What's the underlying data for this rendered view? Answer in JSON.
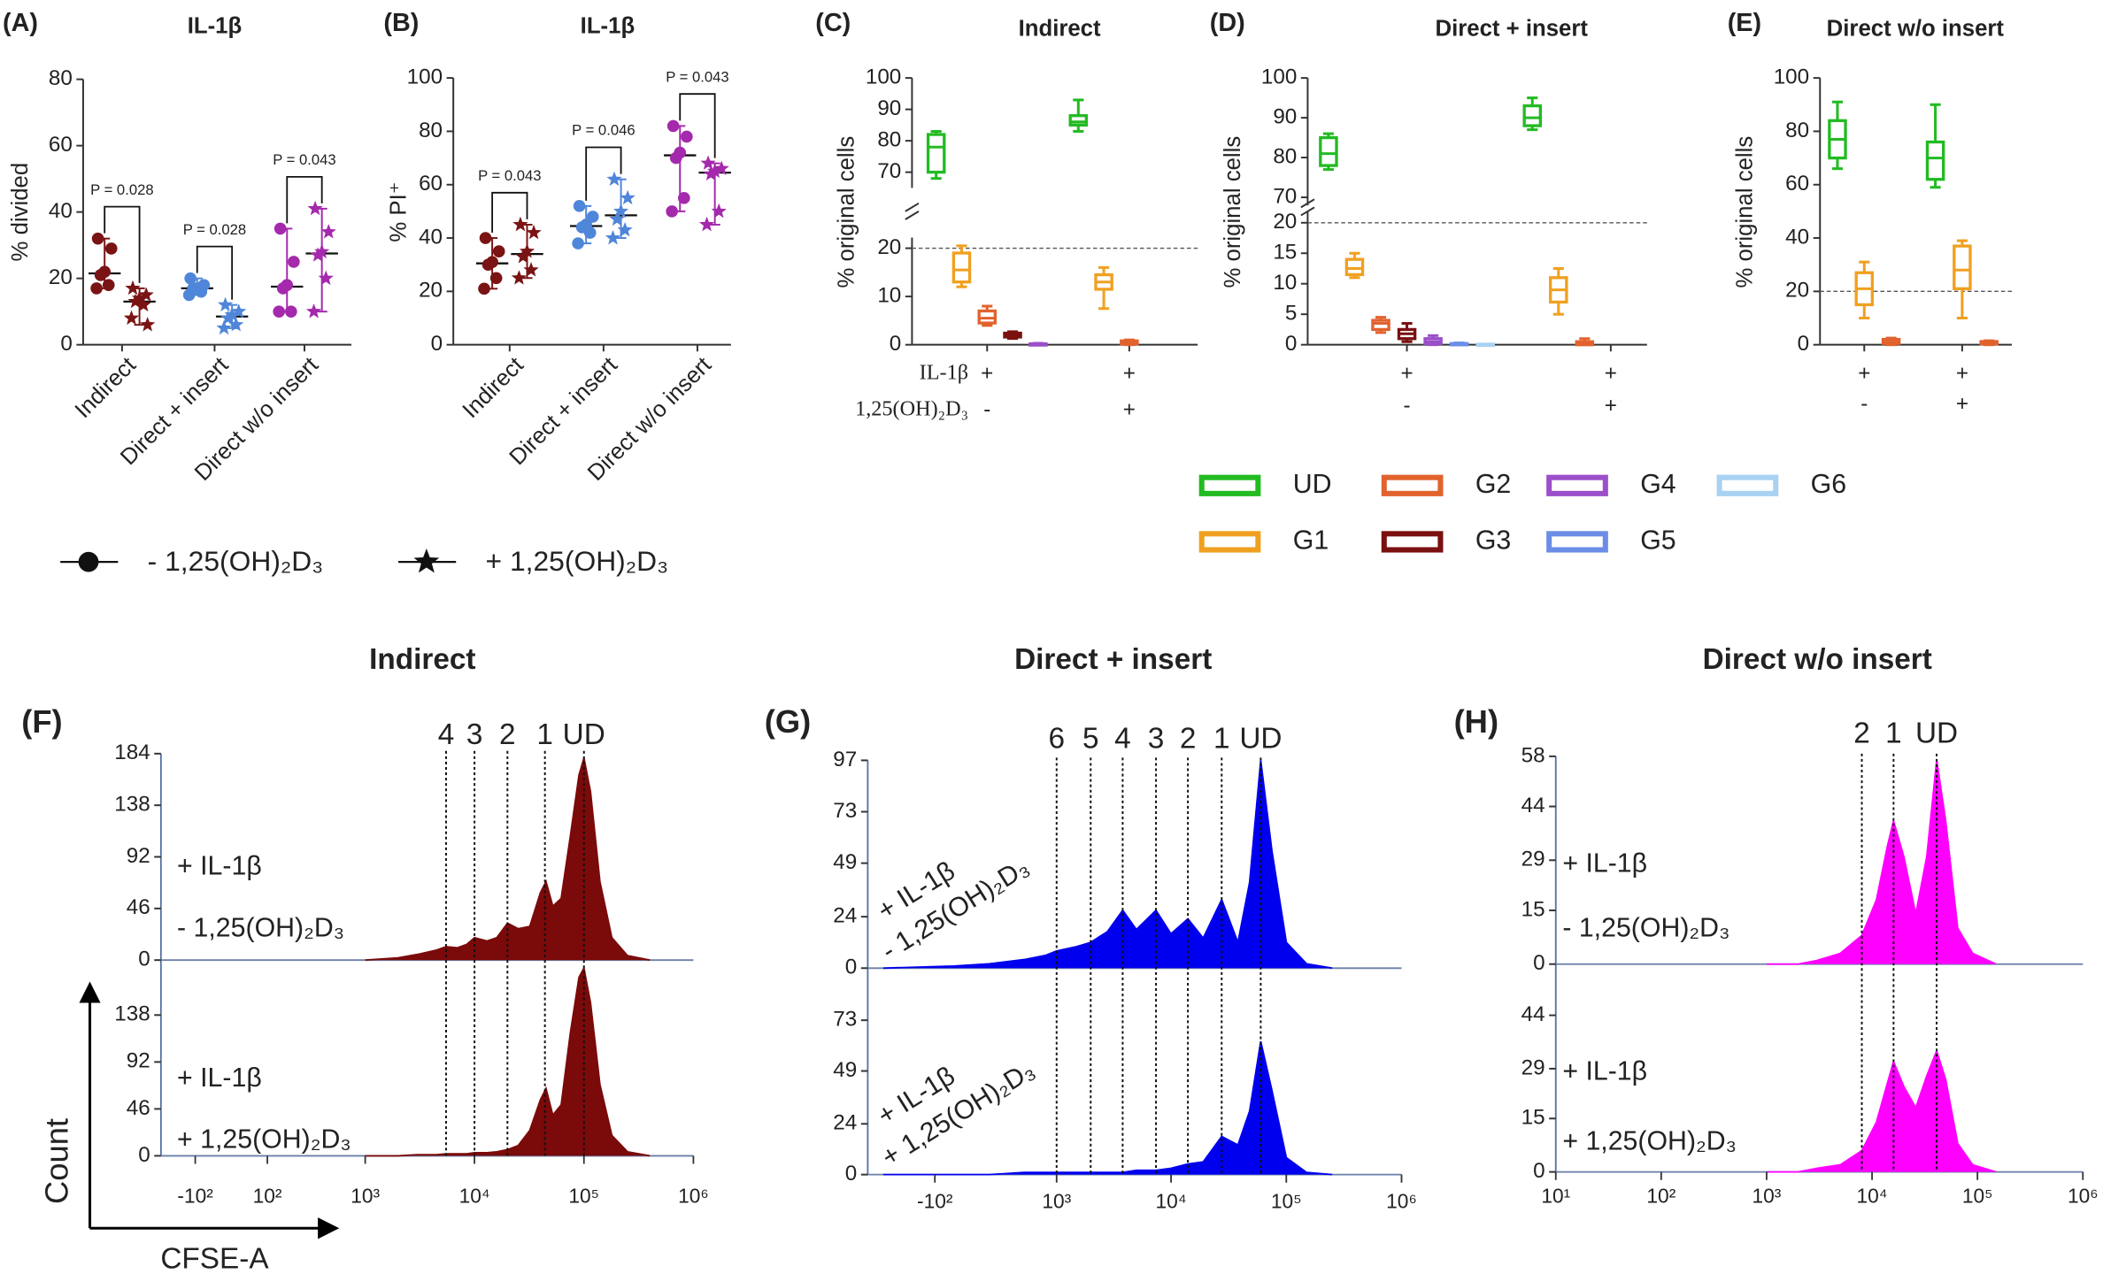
{
  "legend": [
    {
      "name": "- 1,25(OH)₂D₃",
      "marker": "circle"
    },
    {
      "name": "+ 1,25(OH)₂D₃",
      "marker": "star"
    }
  ],
  "group_legend": [
    {
      "name": "UD",
      "color": "#22bb22"
    },
    {
      "name": "G1",
      "color": "#f0a020"
    },
    {
      "name": "G2",
      "color": "#e2622e"
    },
    {
      "name": "G3",
      "color": "#7a1010"
    },
    {
      "name": "G4",
      "color": "#9b4fc9"
    },
    {
      "name": "G5",
      "color": "#6b8de6"
    },
    {
      "name": "G6",
      "color": "#a9d1f2"
    }
  ],
  "chart_data": [
    {
      "type": "dotplot",
      "panel": "(A)",
      "title": "IL-1β",
      "ylabel": "% divided",
      "categories": [
        "Indirect",
        "Direct + insert",
        "Direct w/o insert"
      ],
      "colors": [
        "#7a1414",
        "#4f86d9",
        "#a429ac"
      ],
      "ylim": [
        0,
        80
      ],
      "yticks": [
        0,
        20,
        40,
        60,
        80
      ],
      "series": [
        {
          "marker": "circle",
          "values": [
            [
              32,
              29,
              22,
              21,
              18,
              17
            ],
            [
              20,
              18,
              17,
              17,
              16,
              15
            ],
            [
              35,
              25,
              18,
              17,
              10,
              10
            ]
          ]
        },
        {
          "marker": "star",
          "values": [
            [
              17,
              15,
              14,
              13,
              12,
              8,
              6
            ],
            [
              12,
              10,
              9,
              8,
              6,
              5
            ],
            [
              41,
              34,
              28,
              27,
              20,
              10
            ]
          ]
        }
      ],
      "annotations": [
        {
          "category": 0,
          "label": "P = 0.028"
        },
        {
          "category": 1,
          "label": "P = 0.028"
        },
        {
          "category": 2,
          "label": "P = 0.043"
        }
      ]
    },
    {
      "type": "dotplot",
      "panel": "(B)",
      "title": "IL-1β",
      "ylabel": "% PI⁺",
      "categories": [
        "Indirect",
        "Direct + insert",
        "Direct w/o insert"
      ],
      "colors": [
        "#7a1414",
        "#4f86d9",
        "#a429ac"
      ],
      "ylim": [
        0,
        100
      ],
      "yticks": [
        0,
        20,
        40,
        60,
        80,
        100
      ],
      "series": [
        {
          "marker": "circle",
          "values": [
            [
              40,
              35,
              31,
              30,
              25,
              21
            ],
            [
              52,
              48,
              45,
              44,
              42,
              38
            ],
            [
              82,
              78,
              72,
              70,
              55,
              50
            ]
          ]
        },
        {
          "marker": "star",
          "values": [
            [
              45,
              42,
              35,
              33,
              28,
              25
            ],
            [
              62,
              55,
              50,
              47,
              43,
              40
            ],
            [
              68,
              66,
              65,
              64,
              50,
              45
            ]
          ]
        }
      ],
      "annotations": [
        {
          "category": 0,
          "label": "P = 0.043"
        },
        {
          "category": 1,
          "label": "P = 0.046"
        },
        {
          "category": 2,
          "label": "P = 0.043"
        }
      ]
    },
    {
      "type": "box",
      "panel": "(C)",
      "title": "Indirect",
      "title_color": "#7a1414",
      "ylabel": "% original cells",
      "ylim": [
        0,
        20
      ],
      "yticks": [
        0,
        10,
        20
      ],
      "ylim_upper": [
        65,
        100
      ],
      "yticks_upper": [
        70,
        80,
        90,
        100
      ],
      "reference_line": 20,
      "condition_labels": [
        "IL-1β",
        "1,25(OH)₂D₃"
      ],
      "conditions": [
        [
          "+",
          "-"
        ],
        [
          "+",
          "+"
        ]
      ],
      "series": [
        {
          "group": 0,
          "values": [
            [
              68,
              70,
              78,
              82,
              83
            ],
            [
              83,
              85,
              86,
              88,
              93
            ]
          ]
        },
        {
          "group": 1,
          "values": [
            [
              12,
              13,
              15.5,
              19,
              20.5
            ],
            [
              7.5,
              11.5,
              13,
              14.5,
              16
            ]
          ]
        },
        {
          "group": 2,
          "values": [
            [
              4,
              4.5,
              5.5,
              7,
              8
            ],
            [
              0,
              0.2,
              0.5,
              0.8,
              1
            ]
          ]
        },
        {
          "group": 3,
          "values": [
            [
              1.3,
              1.6,
              2,
              2.4,
              2.7
            ],
            null
          ]
        },
        {
          "group": 4,
          "values": [
            [
              0.1,
              0.1,
              0.2,
              0.2,
              0.3
            ],
            null
          ]
        }
      ]
    },
    {
      "type": "box",
      "panel": "(D)",
      "title": "Direct + insert",
      "title_color": "#6b8de6",
      "ylabel": "% original cells",
      "ylim": [
        0,
        20
      ],
      "yticks": [
        0,
        5,
        10,
        15,
        20
      ],
      "ylim_upper": [
        68,
        100
      ],
      "yticks_upper": [
        70,
        80,
        90,
        100
      ],
      "reference_line": 20,
      "conditions": [
        [
          "+",
          "-"
        ],
        [
          "+",
          "+"
        ]
      ],
      "series": [
        {
          "group": 0,
          "values": [
            [
              77,
              78,
              81,
              85,
              86
            ],
            [
              87,
              88,
              90,
              93,
              95
            ]
          ]
        },
        {
          "group": 1,
          "values": [
            [
              11,
              11.5,
              12.5,
              14,
              15
            ],
            [
              5,
              7,
              9,
              11,
              12.5
            ]
          ]
        },
        {
          "group": 2,
          "values": [
            [
              2,
              2.5,
              3.5,
              4,
              4.5
            ],
            [
              0,
              0,
              0.2,
              0.5,
              1
            ]
          ]
        },
        {
          "group": 3,
          "values": [
            [
              0.5,
              1,
              1.8,
              2.5,
              3.5
            ],
            null
          ]
        },
        {
          "group": 4,
          "values": [
            [
              0,
              0.2,
              0.5,
              1,
              1.5
            ],
            null
          ]
        },
        {
          "group": 5,
          "values": [
            [
              0,
              0,
              0.1,
              0.2,
              0.3
            ],
            null
          ]
        },
        {
          "group": 6,
          "values": [
            [
              0,
              0,
              0,
              0.1,
              0.1
            ],
            null
          ]
        }
      ]
    },
    {
      "type": "box",
      "panel": "(E)",
      "title": "Direct w/o insert",
      "title_color": "#e040e0",
      "ylabel": "% original cells",
      "ylim": [
        0,
        100
      ],
      "yticks": [
        0,
        20,
        40,
        60,
        80,
        100
      ],
      "reference_line": 20,
      "conditions": [
        [
          "+",
          "-"
        ],
        [
          "+",
          "+"
        ]
      ],
      "series": [
        {
          "group": 0,
          "values": [
            [
              66,
              70,
              77,
              84,
              91
            ],
            [
              59,
              62,
              70,
              76,
              90
            ]
          ]
        },
        {
          "group": 1,
          "values": [
            [
              10,
              15,
              21,
              27,
              31
            ],
            [
              10,
              21,
              28,
              37,
              39
            ]
          ]
        },
        {
          "group": 2,
          "values": [
            [
              0,
              0.5,
              1,
              2,
              2.5
            ],
            [
              0,
              0.3,
              0.7,
              1.2,
              1.5
            ]
          ]
        }
      ]
    },
    {
      "type": "area",
      "panel": "(F)",
      "title": "Indirect",
      "color": "#7b0a0a",
      "xscale": "biexponential",
      "ylabel": "Count",
      "xlabel": "CFSE-A",
      "xlim": [
        -250,
        1000000
      ],
      "xticks": [
        {
          "value": -100,
          "label": "-10²"
        },
        {
          "value": 100,
          "label": "10²"
        },
        {
          "value": 1000,
          "label": "10³"
        },
        {
          "value": 10000,
          "label": "10⁴"
        },
        {
          "value": 100000,
          "label": "10⁵"
        },
        {
          "value": 1000000,
          "label": "10⁶"
        }
      ],
      "markers": [
        {
          "label": "4",
          "x": 5500
        },
        {
          "label": "3",
          "x": 10000
        },
        {
          "label": "2",
          "x": 20000
        },
        {
          "label": "1",
          "x": 44000
        },
        {
          "label": "UD",
          "x": 100000
        }
      ],
      "x": [
        1000,
        2000,
        3000,
        4500,
        5500,
        7000,
        8500,
        10000,
        13000,
        16000,
        20000,
        25000,
        32000,
        40000,
        45000,
        52000,
        62000,
        75000,
        90000,
        100000,
        115000,
        140000,
        180000,
        250000,
        400000
      ],
      "panels": [
        {
          "labels": [
            "+ IL-1β",
            "- 1,25(OH)₂D₃"
          ],
          "ylim": [
            0,
            184
          ],
          "yticks": [
            0,
            46,
            92,
            138,
            184
          ],
          "values": [
            0,
            2,
            5,
            9,
            12,
            11,
            14,
            20,
            17,
            20,
            33,
            28,
            30,
            60,
            70,
            48,
            55,
            110,
            165,
            180,
            150,
            70,
            20,
            4,
            0
          ]
        },
        {
          "labels": [
            "+ IL-1β",
            "+ 1,25(OH)₂D₃"
          ],
          "ylim": [
            0,
            184
          ],
          "yticks": [
            0,
            46,
            92,
            138
          ],
          "values": [
            0,
            0,
            1,
            1,
            2,
            2,
            2,
            3,
            3,
            4,
            6,
            10,
            25,
            55,
            66,
            40,
            50,
            120,
            175,
            184,
            150,
            70,
            20,
            4,
            0
          ]
        }
      ]
    },
    {
      "type": "area",
      "panel": "(G)",
      "title": "Direct + insert",
      "color": "#0000ee",
      "xscale": "biexponential",
      "xlim": [
        -700,
        1000000
      ],
      "xticks": [
        {
          "value": -100,
          "label": "-10²"
        },
        {
          "value": 1000,
          "label": "10³"
        },
        {
          "value": 10000,
          "label": "10⁴"
        },
        {
          "value": 100000,
          "label": "10⁵"
        },
        {
          "value": 1000000,
          "label": "10⁶"
        }
      ],
      "markers": [
        {
          "label": "6",
          "x": 1000
        },
        {
          "label": "5",
          "x": 2000
        },
        {
          "label": "4",
          "x": 3800
        },
        {
          "label": "3",
          "x": 7400
        },
        {
          "label": "2",
          "x": 14000
        },
        {
          "label": "1",
          "x": 27500
        },
        {
          "label": "UD",
          "x": 60000
        }
      ],
      "x": [
        -500,
        0,
        200,
        500,
        800,
        1000,
        1500,
        2000,
        2800,
        3800,
        5000,
        7400,
        10000,
        14000,
        19000,
        27500,
        38000,
        48000,
        60000,
        75000,
        100000,
        150000,
        250000
      ],
      "panels": [
        {
          "labels": [
            "+ IL-1β",
            "- 1,25(OH)₂D₃"
          ],
          "ylim": [
            0,
            97
          ],
          "yticks": [
            0,
            24,
            49,
            73,
            97
          ],
          "values": [
            0,
            1,
            2,
            4,
            6,
            8,
            10,
            12,
            17,
            27,
            18,
            27,
            16,
            23,
            14,
            32,
            12,
            40,
            97,
            55,
            12,
            2,
            0
          ]
        },
        {
          "labels": [
            "+ IL-1β",
            "+ 1,25(OH)₂D₃"
          ],
          "ylim": [
            0,
            97
          ],
          "yticks": [
            0,
            24,
            49,
            73
          ],
          "values": [
            0,
            0,
            0,
            1,
            1,
            1,
            1,
            1,
            1,
            1,
            2,
            2,
            3,
            5,
            6,
            18,
            14,
            30,
            63,
            40,
            8,
            1,
            0
          ]
        }
      ]
    },
    {
      "type": "area",
      "panel": "(H)",
      "title": "Direct w/o insert",
      "color": "#ff00ff",
      "xscale": "log",
      "xlim": [
        10,
        1000000
      ],
      "xticks": [
        {
          "value": 10,
          "label": "10¹"
        },
        {
          "value": 100,
          "label": "10²"
        },
        {
          "value": 1000,
          "label": "10³"
        },
        {
          "value": 10000,
          "label": "10⁴"
        },
        {
          "value": 100000,
          "label": "10⁵"
        },
        {
          "value": 1000000,
          "label": "10⁶"
        }
      ],
      "markers": [
        {
          "label": "2",
          "x": 8000
        },
        {
          "label": "1",
          "x": 16000
        },
        {
          "label": "UD",
          "x": 41000
        }
      ],
      "x": [
        1000,
        2000,
        3000,
        5000,
        8000,
        11000,
        14000,
        16000,
        20000,
        26000,
        33000,
        41000,
        50000,
        65000,
        90000,
        150000
      ],
      "panels": [
        {
          "labels": [
            "+ IL-1β",
            "- 1,25(OH)₂D₃"
          ],
          "ylim": [
            0,
            58
          ],
          "yticks": [
            0,
            15,
            29,
            44,
            58
          ],
          "values": [
            0,
            0,
            1,
            3,
            8,
            18,
            33,
            40,
            30,
            14,
            30,
            57,
            40,
            10,
            3,
            0
          ]
        },
        {
          "labels": [
            "+ IL-1β",
            "+ 1,25(OH)₂D₃"
          ],
          "ylim": [
            0,
            58
          ],
          "yticks": [
            0,
            15,
            29,
            44
          ],
          "values": [
            0,
            0,
            1,
            2,
            6,
            14,
            25,
            31,
            24,
            18,
            27,
            34,
            26,
            8,
            2,
            0
          ]
        }
      ]
    }
  ]
}
